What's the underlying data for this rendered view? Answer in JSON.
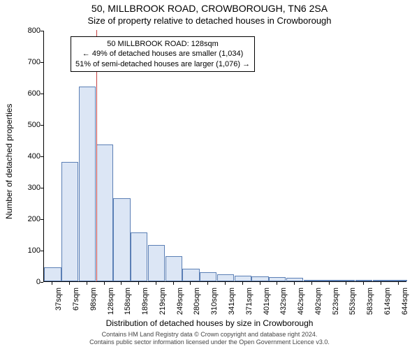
{
  "title_main": "50, MILLBROOK ROAD, CROWBOROUGH, TN6 2SA",
  "title_sub": "Size of property relative to detached houses in Crowborough",
  "y_axis_label": "Number of detached properties",
  "x_axis_label": "Distribution of detached houses by size in Crowborough",
  "chart": {
    "type": "bar",
    "ylim": [
      0,
      800
    ],
    "ytick_step": 100,
    "bar_fill": "#dce6f5",
    "bar_border": "#5b7fb5",
    "marker_color": "#c44040",
    "background_color": "#ffffff",
    "categories": [
      "37sqm",
      "67sqm",
      "98sqm",
      "128sqm",
      "158sqm",
      "189sqm",
      "219sqm",
      "249sqm",
      "280sqm",
      "310sqm",
      "341sqm",
      "371sqm",
      "401sqm",
      "432sqm",
      "462sqm",
      "492sqm",
      "523sqm",
      "553sqm",
      "583sqm",
      "614sqm",
      "644sqm"
    ],
    "values": [
      45,
      380,
      620,
      435,
      265,
      155,
      115,
      80,
      40,
      30,
      22,
      18,
      15,
      14,
      12,
      5,
      3,
      2,
      2,
      1,
      1
    ],
    "marker_category_index": 3,
    "marker_position_in_bar": 0.0
  },
  "annotation": {
    "line1": "50 MILLBROOK ROAD: 128sqm",
    "line2": "← 49% of detached houses are smaller (1,034)",
    "line3": "51% of semi-detached houses are larger (1,076) →",
    "border_color": "#000000",
    "background_color": "#ffffff",
    "fontsize": 11
  },
  "footer": {
    "line1": "Contains HM Land Registry data © Crown copyright and database right 2024.",
    "line2": "Contains public sector information licensed under the Open Government Licence v3.0."
  },
  "colors": {
    "text": "#000000",
    "footer_text": "#444444"
  }
}
